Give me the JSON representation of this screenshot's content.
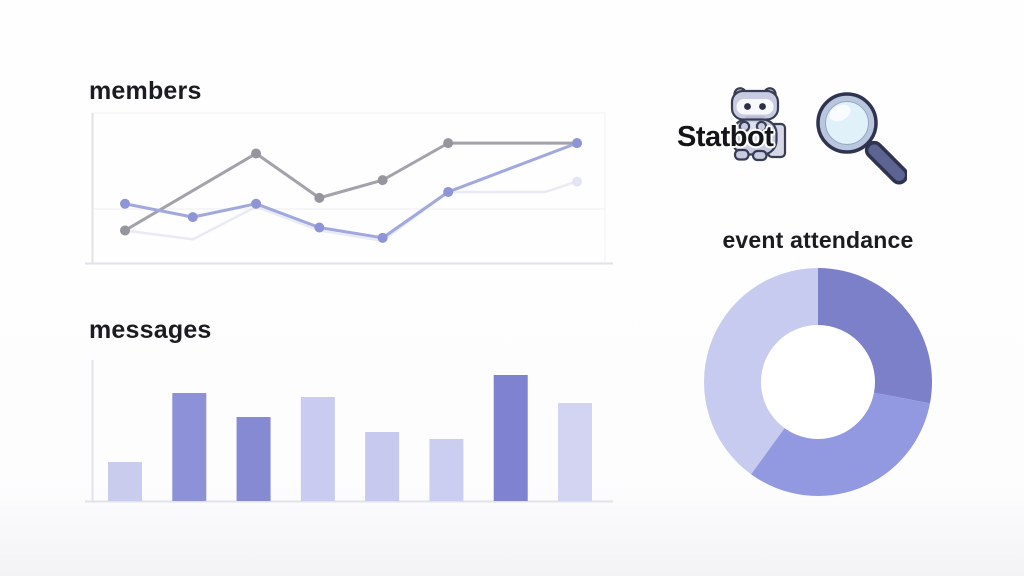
{
  "brand": {
    "name": "Statbot",
    "mascot_icon": "discord-bot-mascot",
    "search_icon": "magnifying-glass"
  },
  "palette": {
    "accent_dark": "#7b80c8",
    "accent_medium": "#9399e0",
    "accent_light": "#c7cbef",
    "text": "#1b1c20",
    "axis": "#e2e3ea"
  },
  "chart_data": [
    {
      "id": "members",
      "type": "line",
      "title": "members",
      "xlabel": "",
      "ylabel": "",
      "ylim": [
        0,
        100
      ],
      "grid": true,
      "legend": "none",
      "axis_color": "#e2e3ea",
      "frame_color": "#f1f2f6",
      "grid_color": "#f3f3f7",
      "series": [
        {
          "name": "ghost-line",
          "color": "#e9eaf4",
          "dot_color": "#e2e4f2",
          "width": 2.5,
          "dots": false,
          "end_dot": true,
          "x": [
            0,
            15,
            29,
            43,
            57,
            71.5,
            93,
            100
          ],
          "values": [
            22,
            16,
            38,
            22,
            15,
            48,
            48,
            55
          ]
        },
        {
          "name": "gray-line",
          "color": "#a2a2aa",
          "dot_color": "#95959e",
          "width": 3,
          "dots": true,
          "end_dot": false,
          "x": [
            0,
            29,
            43,
            57,
            71.5,
            100
          ],
          "values": [
            22,
            74,
            44,
            56,
            81,
            81
          ]
        },
        {
          "name": "blue-line",
          "color": "#a0a8de",
          "dot_color": "#8d95d6",
          "width": 3,
          "dots": true,
          "end_dot": false,
          "x": [
            0,
            15,
            29,
            43,
            57,
            71.5,
            100
          ],
          "values": [
            40,
            31,
            40,
            24,
            17,
            48,
            81
          ]
        }
      ]
    },
    {
      "id": "messages",
      "type": "bar",
      "title": "messages",
      "xlabel": "",
      "ylabel": "",
      "ylim": [
        0,
        140
      ],
      "grid": false,
      "legend": "none",
      "axis_color": "#e2e3ea",
      "values": [
        39,
        108,
        84,
        104,
        69,
        62,
        126,
        98
      ],
      "bar_colors": [
        "#caccee",
        "#8d91d8",
        "#868ad3",
        "#c9ccf0",
        "#c7caee",
        "#cbcdf1",
        "#7e82d0",
        "#d2d4f1"
      ]
    },
    {
      "id": "event-attendance",
      "type": "donut",
      "title": "event attendance",
      "legend": "none",
      "start_angle_deg": 0,
      "inner_radius_ratio": 0.5,
      "slices": [
        {
          "name": "slice-1",
          "value": 28,
          "color": "#7b80c8"
        },
        {
          "name": "slice-2",
          "value": 32,
          "color": "#9399e0"
        },
        {
          "name": "slice-3",
          "value": 40,
          "color": "#c7cbef"
        }
      ]
    }
  ]
}
